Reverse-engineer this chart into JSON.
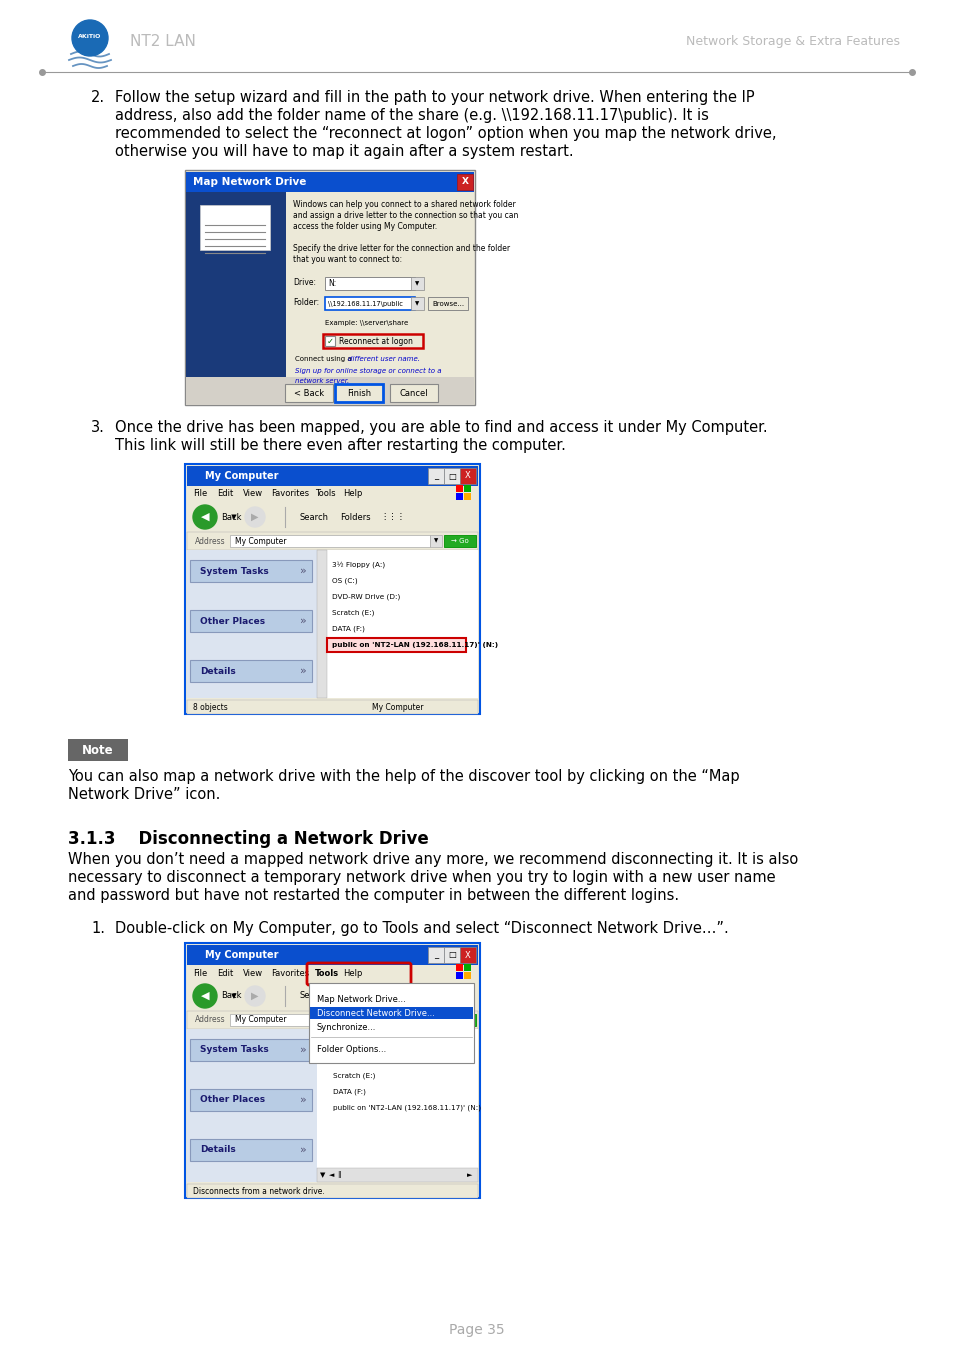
{
  "page_bg": "#ffffff",
  "header_left": "NT2 LAN",
  "header_right": "Network Storage & Extra Features",
  "item2_text": [
    "Follow the setup wizard and fill in the path to your network drive. When entering the IP",
    "address, also add the folder name of the share (e.g. \\\\192.168.11.17\\public). It is",
    "recommended to select the “reconnect at logon” option when you map the network drive,",
    "otherwise you will have to map it again after a system restart."
  ],
  "item3_text": [
    "Once the drive has been mapped, you are able to find and access it under My Computer.",
    "This link will still be there even after restarting the computer."
  ],
  "note_text": [
    "You can also map a network drive with the help of the discover tool by clicking on the “Map",
    "Network Drive” icon."
  ],
  "section_title": "3.1.3    Disconnecting a Network Drive",
  "section_body": [
    "When you don’t need a mapped network drive any more, we recommend disconnecting it. It is also",
    "necessary to disconnect a temporary network drive when you try to login with a new user name",
    "and password but have not restarted the computer in between the different logins."
  ],
  "item1_text": "Double-click on My Computer, go to Tools and select “Disconnect Network Drive…”.",
  "footer_text": "Page 35",
  "footer_color": "#aaaaaa",
  "body_fontsize": 10.5,
  "small_fontsize": 6.5
}
